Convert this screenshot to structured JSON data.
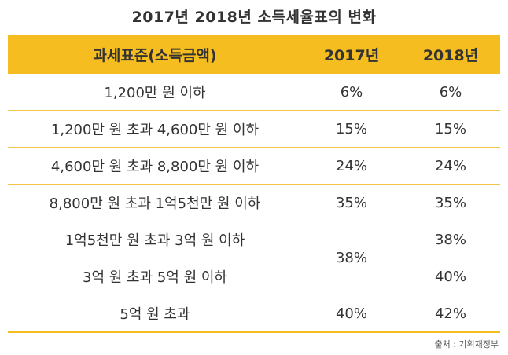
{
  "title": "2017년 2018년 소득세율표의 변화",
  "table": {
    "headers": [
      "과세표준(소득금액)",
      "2017년",
      "2018년"
    ],
    "rows": [
      {
        "bracket": "1,200만 원 이하",
        "y2017": "6%",
        "y2018": "6%"
      },
      {
        "bracket": "1,200만 원 초과 4,600만 원 이하",
        "y2017": "15%",
        "y2018": "15%"
      },
      {
        "bracket": "4,600만 원 초과 8,800만 원 이하",
        "y2017": "24%",
        "y2018": "24%"
      },
      {
        "bracket": "8,800만 원 초과 1억5천만 원 이하",
        "y2017": "35%",
        "y2018": "35%"
      },
      {
        "bracket": "1억5천만 원 초과 3억 원 이하",
        "y2017": "38%",
        "y2018": "38%"
      },
      {
        "bracket": "3억 원 초과 5억 원 이하",
        "y2018": "40%"
      },
      {
        "bracket": "5억 원 초과",
        "y2017": "40%",
        "y2018": "42%"
      }
    ]
  },
  "source": "출처 : 기획재정부",
  "colors": {
    "header_bg": "#f5bd1f",
    "rule": "#f3c44a"
  }
}
